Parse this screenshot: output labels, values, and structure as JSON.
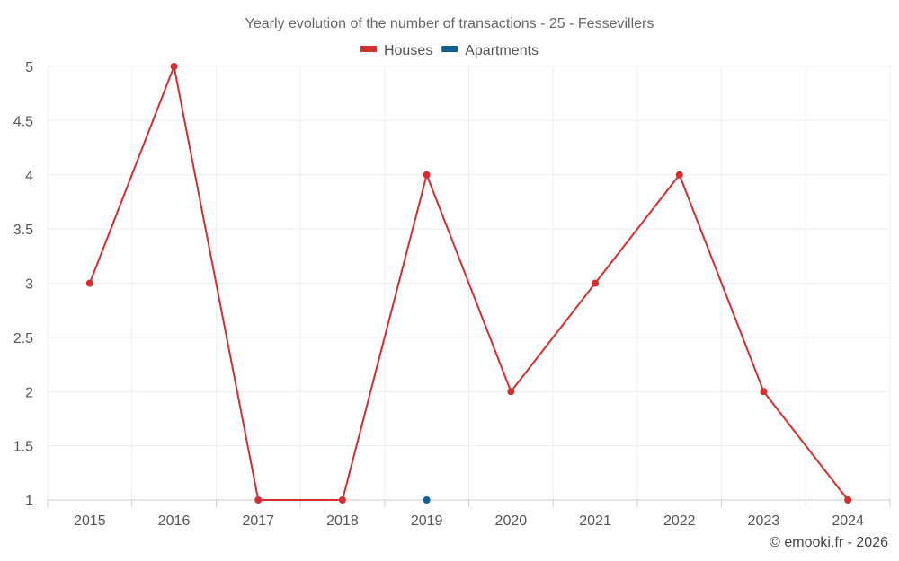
{
  "chart_data": {
    "type": "line",
    "title": "Yearly evolution of the number of transactions - 25 - Fessevillers",
    "x": [
      "2015",
      "2016",
      "2017",
      "2018",
      "2019",
      "2020",
      "2021",
      "2022",
      "2023",
      "2024"
    ],
    "series": [
      {
        "name": "Houses",
        "color": "#d32f2f",
        "values": [
          3,
          5,
          1,
          1,
          4,
          2,
          3,
          4,
          2,
          1
        ]
      },
      {
        "name": "Apartments",
        "color": "#0f6292",
        "values": [
          null,
          null,
          null,
          null,
          1,
          null,
          null,
          null,
          null,
          null
        ]
      }
    ],
    "y_ticks": [
      "1",
      "1.5",
      "2",
      "2.5",
      "3",
      "3.5",
      "4",
      "4.5",
      "5"
    ],
    "ylim": [
      1,
      5
    ],
    "grid": true,
    "legend_position": "top-center"
  },
  "credit": "© emooki.fr - 2026"
}
